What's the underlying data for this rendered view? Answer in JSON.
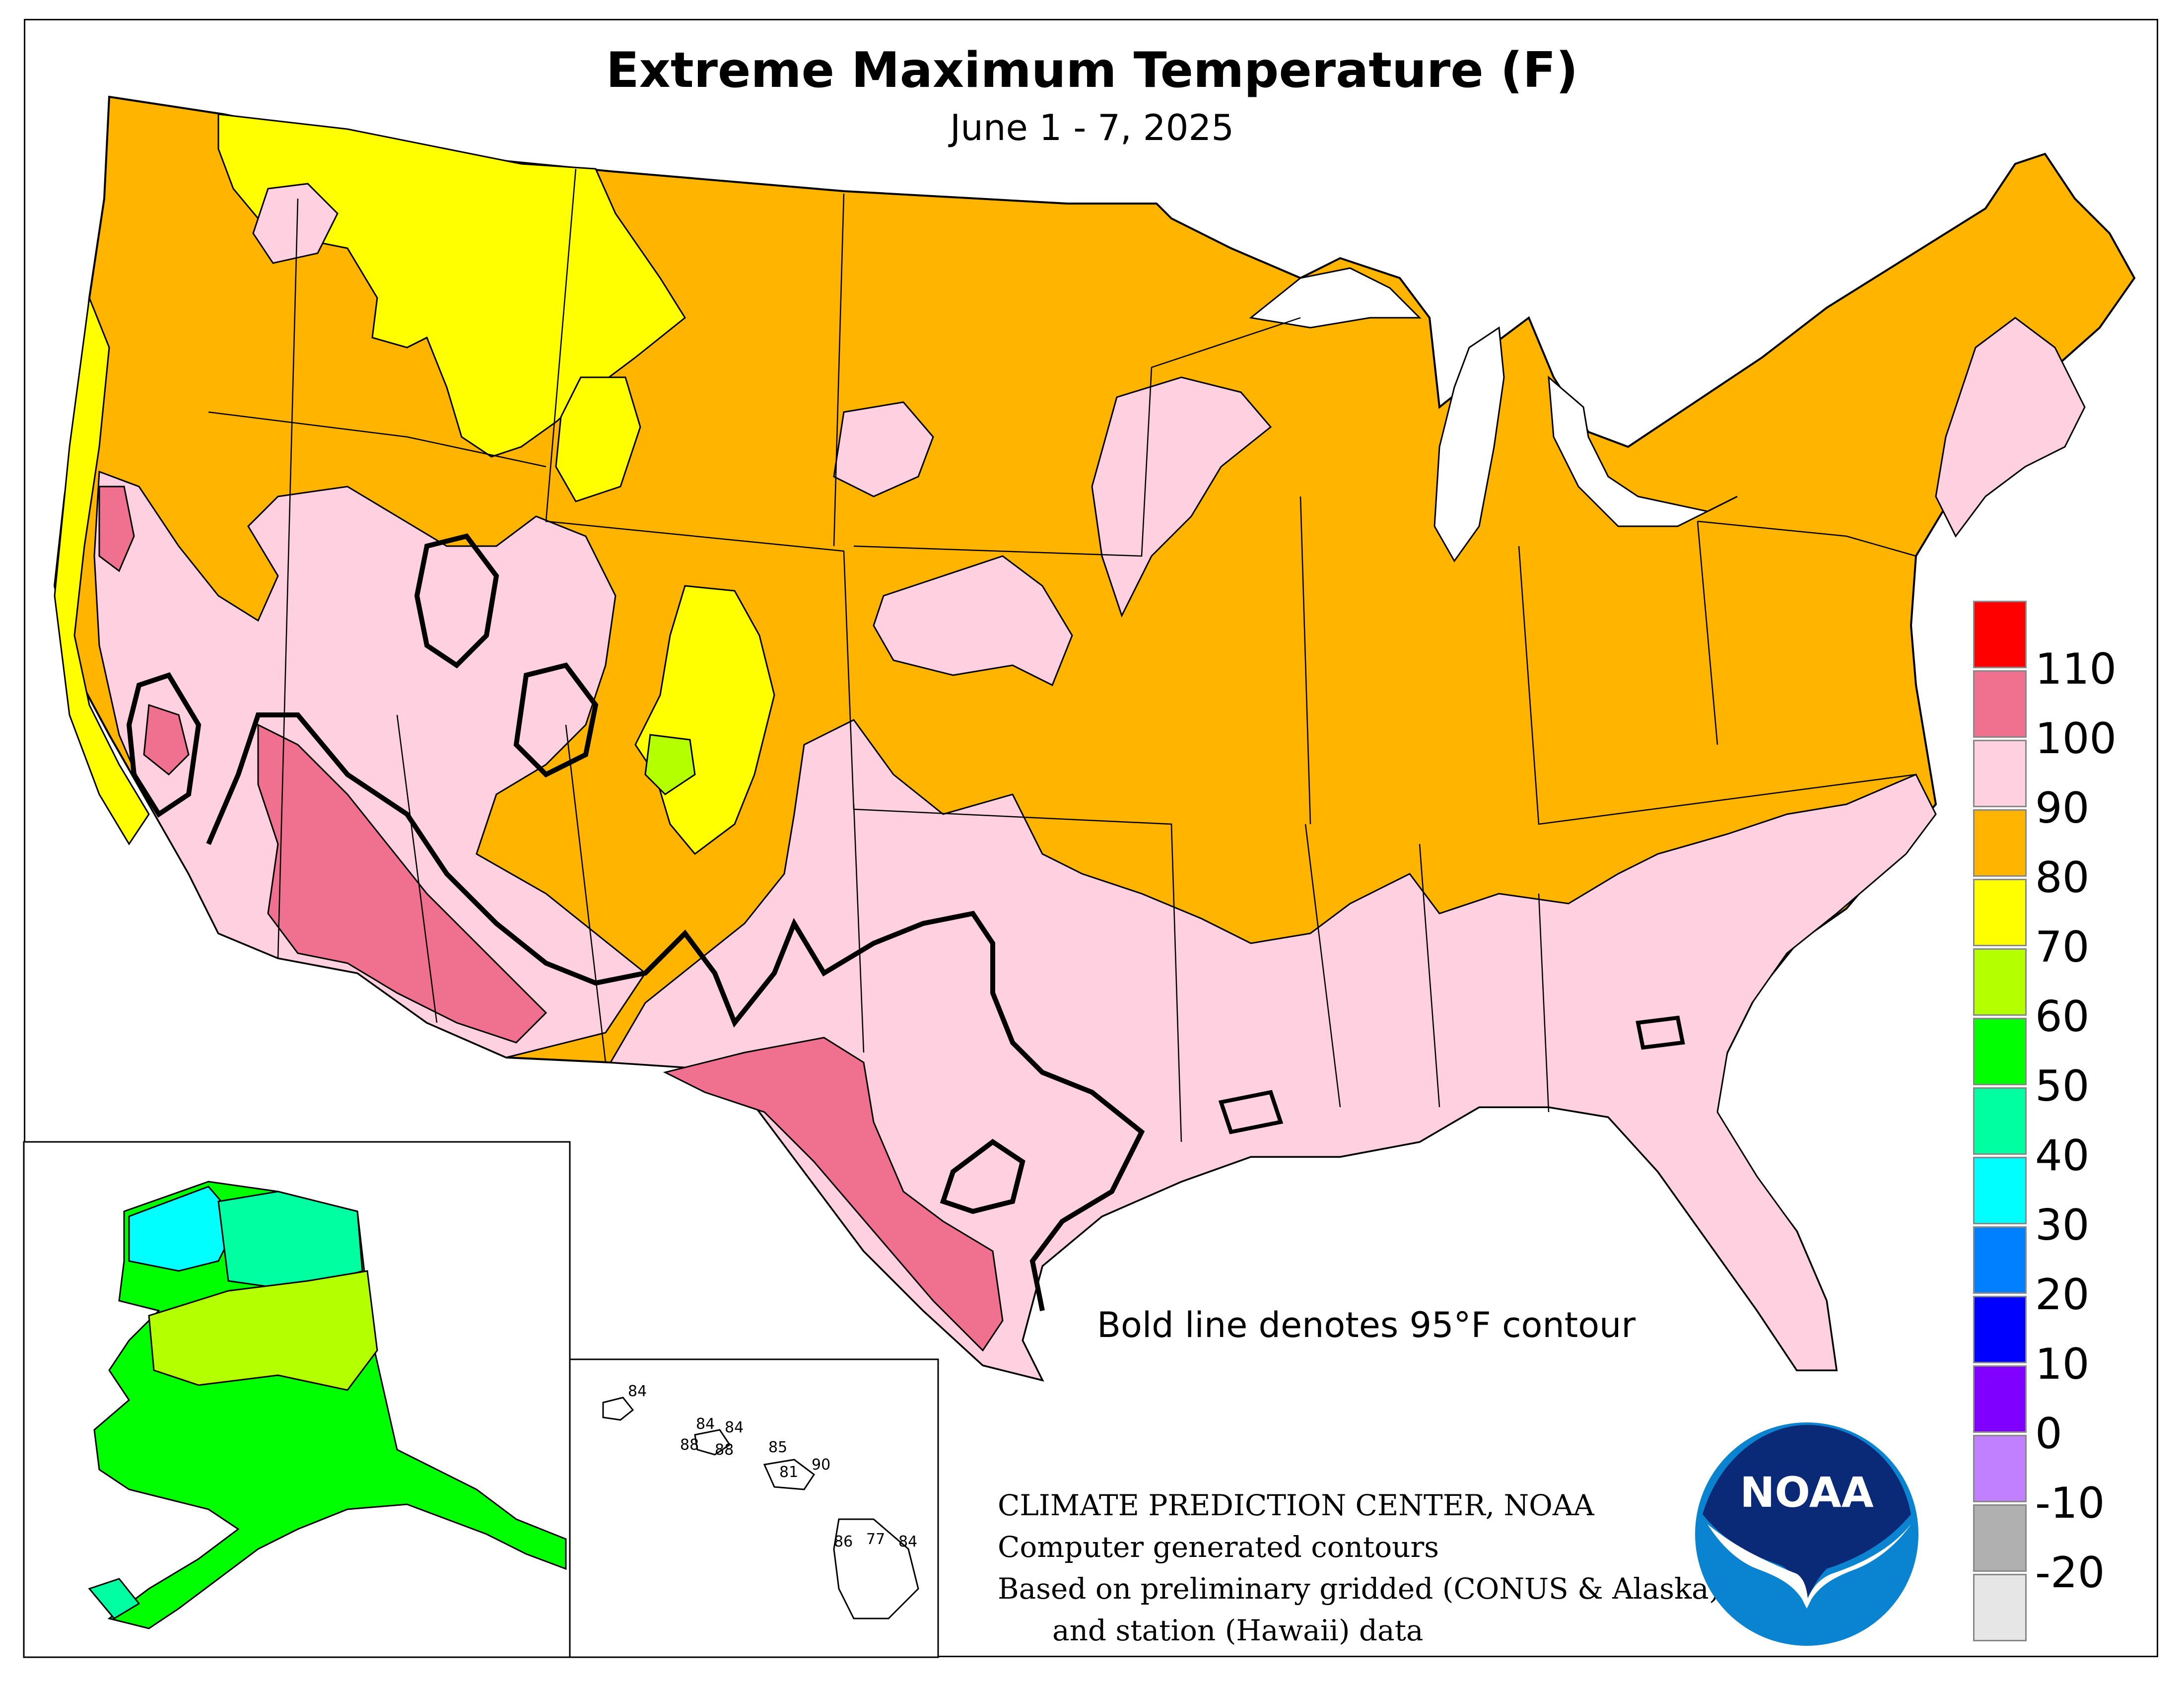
{
  "title": "Extreme Maximum Temperature (F)",
  "subtitle": "June 1 - 7, 2025",
  "contour_note": "Bold line denotes 95°F contour",
  "credits": {
    "line1": "CLIMATE PREDICTION CENTER, NOAA",
    "line2": "Computer generated contours",
    "line3": "Based on preliminary gridded (CONUS & Alaska)",
    "line4": "and station (Hawaii) data"
  },
  "logo_text": "NOAA",
  "legend": [
    {
      "label": "110",
      "color": "#ff0000"
    },
    {
      "label": "100",
      "color": "#f07090"
    },
    {
      "label": "90",
      "color": "#ffd0e0"
    },
    {
      "label": "80",
      "color": "#ffb400"
    },
    {
      "label": "70",
      "color": "#ffff00"
    },
    {
      "label": "60",
      "color": "#b4ff00"
    },
    {
      "label": "50",
      "color": "#00ff00"
    },
    {
      "label": "40",
      "color": "#00ffa0"
    },
    {
      "label": "30",
      "color": "#00ffff"
    },
    {
      "label": "20",
      "color": "#0080ff"
    },
    {
      "label": "10",
      "color": "#0000ff"
    },
    {
      "label": "0",
      "color": "#8000ff"
    },
    {
      "label": "-10",
      "color": "#c080ff"
    },
    {
      "label": "-20",
      "color": "#b0b0b0"
    },
    {
      "label": "",
      "color": "#e6e6e6"
    }
  ],
  "hawaii_values": [
    "84",
    "84",
    "84",
    "88",
    "88",
    "85",
    "90",
    "81",
    "86",
    "77",
    "84"
  ]
}
